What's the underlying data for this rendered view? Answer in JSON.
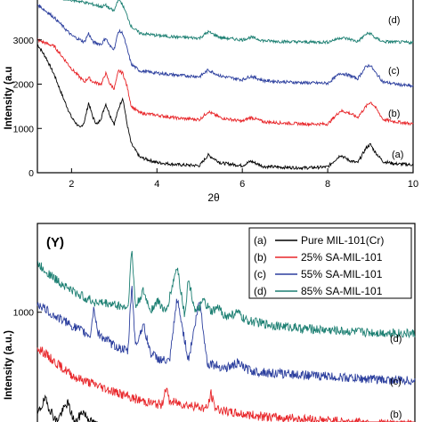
{
  "chart_data": [
    {
      "type": "line",
      "title": "",
      "xlabel": "2θ",
      "ylabel": "Intensity (a.u",
      "xlim": [
        1.2,
        10
      ],
      "ylim": [
        0,
        3900
      ],
      "xticks": [
        "2",
        "4",
        "6",
        "8",
        "10"
      ],
      "yticks": [
        "0",
        "1000",
        "2000",
        "3000"
      ],
      "grid": false,
      "series": [
        {
          "name": "(a)",
          "color": "#000000",
          "x": [
            1.2,
            1.4,
            1.6,
            1.8,
            2.0,
            2.2,
            2.3,
            2.4,
            2.5,
            2.6,
            2.7,
            2.8,
            2.9,
            3.0,
            3.1,
            3.2,
            3.3,
            3.4,
            3.6,
            4.0,
            4.5,
            5.0,
            5.2,
            5.5,
            6.0,
            6.2,
            6.5,
            7.0,
            7.5,
            8.0,
            8.3,
            8.5,
            8.7,
            8.9,
            9.0,
            9.1,
            9.3,
            9.6,
            10.0
          ],
          "y": [
            2900,
            2600,
            2200,
            1700,
            1250,
            1000,
            1150,
            1580,
            1250,
            1080,
            1250,
            1560,
            1300,
            1100,
            1440,
            1700,
            1100,
            650,
            350,
            230,
            180,
            160,
            400,
            220,
            160,
            260,
            140,
            120,
            110,
            130,
            400,
            280,
            220,
            560,
            640,
            480,
            250,
            200,
            180
          ]
        },
        {
          "name": "(b)",
          "color": "#e8262a",
          "x": [
            1.2,
            1.6,
            2.0,
            2.3,
            2.4,
            2.5,
            2.7,
            2.8,
            2.9,
            3.0,
            3.1,
            3.2,
            3.3,
            3.4,
            3.6,
            4.0,
            4.5,
            5.0,
            5.2,
            5.5,
            6.0,
            6.2,
            6.5,
            7.0,
            7.5,
            8.0,
            8.3,
            8.5,
            8.7,
            8.9,
            9.0,
            9.1,
            9.3,
            9.6,
            10.0
          ],
          "y": [
            3000,
            2850,
            2350,
            2050,
            2150,
            2050,
            2000,
            2250,
            2000,
            1900,
            2300,
            2250,
            1950,
            1500,
            1350,
            1300,
            1230,
            1200,
            1380,
            1240,
            1160,
            1250,
            1150,
            1120,
            1100,
            1100,
            1400,
            1350,
            1250,
            1500,
            1600,
            1500,
            1200,
            1150,
            1100
          ]
        },
        {
          "name": "(c)",
          "color": "#2c3f9e",
          "x": [
            1.2,
            1.6,
            2.0,
            2.3,
            2.4,
            2.5,
            2.7,
            2.8,
            2.9,
            3.0,
            3.1,
            3.2,
            3.3,
            3.4,
            3.6,
            4.0,
            4.5,
            5.0,
            5.2,
            5.5,
            6.0,
            6.2,
            6.5,
            7.0,
            7.5,
            8.0,
            8.3,
            8.5,
            8.7,
            8.9,
            9.0,
            9.1,
            9.3,
            9.6,
            10.0
          ],
          "y": [
            3800,
            3500,
            3100,
            2950,
            3150,
            2950,
            2900,
            3050,
            2850,
            2800,
            3200,
            3150,
            2800,
            2450,
            2300,
            2250,
            2200,
            2170,
            2320,
            2180,
            2100,
            2180,
            2080,
            2050,
            2030,
            2020,
            2250,
            2200,
            2120,
            2400,
            2430,
            2280,
            2050,
            2000,
            1950
          ]
        },
        {
          "name": "(d)",
          "color": "#1c7f72",
          "x": [
            1.8,
            2.0,
            2.3,
            2.5,
            2.7,
            2.8,
            2.9,
            3.0,
            3.1,
            3.2,
            3.3,
            3.4,
            3.6,
            4.0,
            4.5,
            5.0,
            5.2,
            5.5,
            6.0,
            6.2,
            6.5,
            7.0,
            7.5,
            8.0,
            8.3,
            8.5,
            8.7,
            8.9,
            9.0,
            9.1,
            9.3,
            9.6,
            10.0
          ],
          "y": [
            3950,
            3900,
            3850,
            3800,
            3750,
            3780,
            3700,
            3650,
            3950,
            3780,
            3550,
            3300,
            3150,
            3100,
            3060,
            3040,
            3180,
            3050,
            3000,
            3060,
            2980,
            2960,
            2950,
            2950,
            3050,
            3020,
            2960,
            3130,
            3150,
            3050,
            2960,
            2950,
            2940
          ]
        }
      ],
      "annotations": [
        "(a)",
        "(b)",
        "(c)",
        "(d)"
      ]
    },
    {
      "type": "line",
      "title": "(Y)",
      "xlabel": "",
      "ylabel": "Intensity (a.u.)",
      "ylim": [
        0,
        1750
      ],
      "xlim": [
        0,
        10
      ],
      "yticks": [
        "1000"
      ],
      "grid": false,
      "legend": {
        "placement": "top-right",
        "entries": [
          "(a) Pure MIL-101(Cr)",
          "(b) 25% SA-MIL-101",
          "(c) 55% SA-MIL-101",
          "(d) 85% SA-MIL-101"
        ]
      },
      "series": [
        {
          "name": "Pure MIL-101(Cr)",
          "color": "#000000",
          "x": [
            0.0,
            0.2,
            0.5,
            0.8,
            1.0,
            1.2,
            1.4,
            1.6
          ],
          "y": [
            120,
            250,
            60,
            220,
            40,
            150,
            60,
            20
          ]
        },
        {
          "name": "25% SA-MIL-101",
          "color": "#e8262a",
          "x": [
            0.0,
            0.5,
            1.0,
            1.5,
            2.0,
            2.5,
            3.0,
            3.3,
            3.4,
            3.5,
            4.0,
            4.5,
            4.6,
            4.7,
            5.0,
            5.5,
            6.0,
            7.0,
            8.0,
            9.0,
            10.0
          ],
          "y": [
            700,
            560,
            440,
            380,
            320,
            260,
            220,
            200,
            360,
            230,
            200,
            170,
            300,
            180,
            140,
            120,
            100,
            80,
            60,
            40,
            30
          ]
        },
        {
          "name": "55% SA-MIL-101",
          "color": "#2c3f9e",
          "x": [
            0.0,
            0.4,
            1.0,
            1.4,
            1.5,
            1.6,
            2.0,
            2.4,
            2.5,
            2.6,
            2.8,
            3.0,
            3.2,
            3.5,
            3.7,
            4.0,
            4.3,
            4.5,
            5.0,
            5.3,
            5.6,
            6.0,
            6.5,
            7.0,
            7.5,
            8.0,
            8.5,
            9.0,
            9.5,
            10.0
          ],
          "y": [
            1080,
            980,
            870,
            800,
            1050,
            820,
            720,
            660,
            1250,
            700,
            900,
            650,
            600,
            570,
            1120,
            590,
            1110,
            560,
            520,
            560,
            500,
            480,
            470,
            460,
            450,
            440,
            430,
            420,
            415,
            410
          ]
        },
        {
          "name": "85% SA-MIL-101",
          "color": "#1c7f72",
          "x": [
            0.0,
            0.5,
            1.0,
            1.5,
            2.0,
            2.4,
            2.5,
            2.6,
            2.8,
            3.0,
            3.2,
            3.4,
            3.7,
            3.9,
            4.0,
            4.2,
            4.4,
            4.6,
            4.8,
            5.0,
            5.3,
            5.5,
            6.0,
            6.5,
            7.0,
            7.5,
            8.0,
            8.5,
            9.0,
            9.5,
            10.0
          ],
          "y": [
            1420,
            1280,
            1170,
            1090,
            1070,
            1040,
            1550,
            1040,
            1180,
            1020,
            1100,
            990,
            1400,
            980,
            1280,
            990,
            1100,
            1000,
            1040,
            960,
            1000,
            930,
            900,
            880,
            860,
            850,
            840,
            830,
            825,
            820,
            815
          ]
        }
      ],
      "annotations": [
        "(b)",
        "(c)",
        "(d)"
      ]
    }
  ]
}
